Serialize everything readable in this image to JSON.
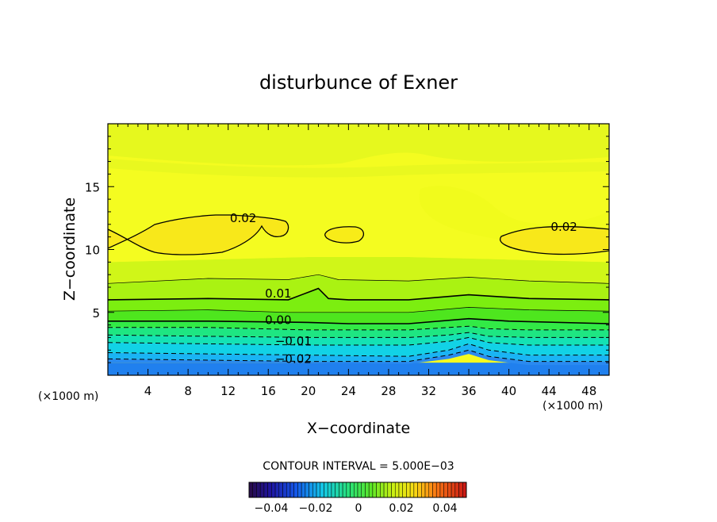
{
  "chart_data": {
    "type": "contour",
    "title": "disturbunce of Exner",
    "xlabel": "X−coordinate",
    "ylabel": "Z−coordinate",
    "x_unit_label": "(×1000 m)",
    "y_unit_label": "(×1000 m)",
    "xlim": [
      0,
      50
    ],
    "ylim": [
      0,
      20
    ],
    "x_ticks": [
      4,
      8,
      12,
      16,
      20,
      24,
      28,
      32,
      36,
      40,
      44,
      48
    ],
    "y_ticks": [
      5,
      10,
      15
    ],
    "contour_interval_text": "CONTOUR INTERVAL = 5.000E−03",
    "contour_labels": [
      {
        "text": "0.02",
        "x": 13.5,
        "z": 12.5
      },
      {
        "text": "0.02",
        "x": 45.5,
        "z": 11.8
      },
      {
        "text": "0.01",
        "x": 17.0,
        "z": 6.5
      },
      {
        "text": "0.00",
        "x": 17.0,
        "z": 4.4
      },
      {
        "text": "−0.01",
        "x": 18.5,
        "z": 2.7
      },
      {
        "text": "−0.02",
        "x": 18.5,
        "z": 1.3
      }
    ],
    "levels": [
      {
        "value": -0.03,
        "color": "#2a8af0",
        "line": "none",
        "pts": [
          [
            0,
            1.0
          ],
          [
            10,
            1.0
          ],
          [
            20,
            1.0
          ],
          [
            30,
            0.9
          ],
          [
            34,
            1.3
          ],
          [
            36,
            1.7
          ],
          [
            38,
            1.2
          ],
          [
            42,
            0.8
          ],
          [
            50,
            0.8
          ]
        ]
      },
      {
        "value": -0.025,
        "color": "#1ab4f4",
        "line": "dashed",
        "pts": [
          [
            0,
            1.3
          ],
          [
            10,
            1.2
          ],
          [
            20,
            1.1
          ],
          [
            30,
            1.1
          ],
          [
            34,
            1.6
          ],
          [
            36,
            2.0
          ],
          [
            38,
            1.5
          ],
          [
            42,
            1.1
          ],
          [
            50,
            1.1
          ]
        ]
      },
      {
        "value": -0.02,
        "color": "#12d2e6",
        "line": "dashed",
        "pts": [
          [
            0,
            1.8
          ],
          [
            10,
            1.7
          ],
          [
            20,
            1.6
          ],
          [
            30,
            1.5
          ],
          [
            34,
            2.0
          ],
          [
            36,
            2.5
          ],
          [
            38,
            2.0
          ],
          [
            42,
            1.6
          ],
          [
            50,
            1.6
          ]
        ]
      },
      {
        "value": -0.015,
        "color": "#14e2b4",
        "line": "dashed",
        "pts": [
          [
            0,
            2.6
          ],
          [
            10,
            2.5
          ],
          [
            20,
            2.4
          ],
          [
            30,
            2.4
          ],
          [
            34,
            2.7
          ],
          [
            36,
            3.0
          ],
          [
            38,
            2.6
          ],
          [
            42,
            2.4
          ],
          [
            50,
            2.4
          ]
        ]
      },
      {
        "value": -0.01,
        "color": "#1ee682",
        "line": "dashed",
        "pts": [
          [
            0,
            3.2
          ],
          [
            10,
            3.1
          ],
          [
            20,
            3.0
          ],
          [
            30,
            3.0
          ],
          [
            34,
            3.2
          ],
          [
            36,
            3.4
          ],
          [
            38,
            3.1
          ],
          [
            42,
            3.0
          ],
          [
            50,
            3.0
          ]
        ]
      },
      {
        "value": -0.005,
        "color": "#32ea46",
        "line": "dashed",
        "pts": [
          [
            0,
            3.8
          ],
          [
            10,
            3.8
          ],
          [
            20,
            3.6
          ],
          [
            30,
            3.6
          ],
          [
            34,
            3.8
          ],
          [
            36,
            3.9
          ],
          [
            38,
            3.7
          ],
          [
            42,
            3.6
          ],
          [
            50,
            3.6
          ]
        ]
      },
      {
        "value": 0.0,
        "color": "#4ee61e",
        "line": "thick",
        "pts": [
          [
            0,
            4.3
          ],
          [
            10,
            4.3
          ],
          [
            20,
            4.2
          ],
          [
            24,
            4.1
          ],
          [
            30,
            4.1
          ],
          [
            36,
            4.5
          ],
          [
            40,
            4.3
          ],
          [
            50,
            4.1
          ]
        ]
      },
      {
        "value": 0.005,
        "color": "#7cee10",
        "line": "thin",
        "pts": [
          [
            0,
            5.1
          ],
          [
            10,
            5.2
          ],
          [
            18,
            5.0
          ],
          [
            22,
            5.0
          ],
          [
            30,
            5.0
          ],
          [
            36,
            5.4
          ],
          [
            42,
            5.2
          ],
          [
            50,
            5.1
          ]
        ]
      },
      {
        "value": 0.01,
        "color": "#aaf212",
        "line": "thick",
        "pts": [
          [
            0,
            6.0
          ],
          [
            10,
            6.1
          ],
          [
            18,
            6.0
          ],
          [
            20,
            6.6
          ],
          [
            21,
            6.9
          ],
          [
            22,
            6.1
          ],
          [
            24,
            6.0
          ],
          [
            30,
            6.0
          ],
          [
            36,
            6.4
          ],
          [
            42,
            6.1
          ],
          [
            50,
            6.0
          ]
        ]
      },
      {
        "value": 0.015,
        "color": "#d0f618",
        "line": "thin",
        "pts": [
          [
            0,
            7.3
          ],
          [
            10,
            7.7
          ],
          [
            18,
            7.6
          ],
          [
            21,
            8.0
          ],
          [
            23,
            7.6
          ],
          [
            30,
            7.5
          ],
          [
            36,
            7.8
          ],
          [
            42,
            7.5
          ],
          [
            50,
            7.3
          ]
        ]
      },
      {
        "value": 0.02,
        "color": "#eefa1e",
        "line": "none",
        "pts": [
          [
            0,
            9.0
          ],
          [
            10,
            9.2
          ],
          [
            20,
            9.4
          ],
          [
            30,
            9.4
          ],
          [
            40,
            9.2
          ],
          [
            50,
            9.0
          ]
        ]
      }
    ]
  }
}
